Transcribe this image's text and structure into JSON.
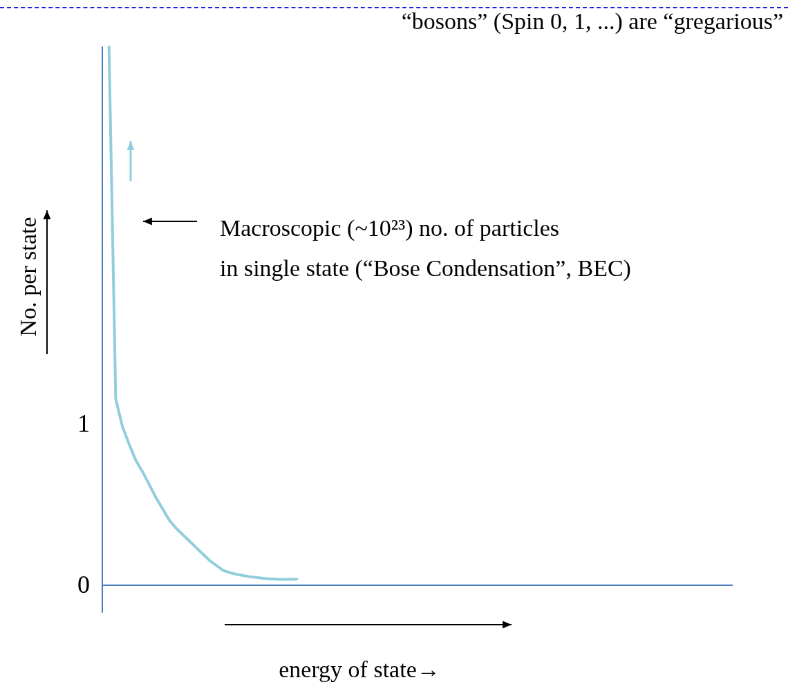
{
  "chart_data": {
    "type": "line",
    "title": "“bosons” (Spin 0, 1, ...) are “gregarious”",
    "xlabel": "energy of state→",
    "ylabel": "No. per state",
    "annotations": [
      "Macroscopic (~10²³) no. of particles\nin single state (“Bose Condensation”, BEC)"
    ],
    "categories": [
      null,
      null,
      null,
      null,
      null,
      null,
      null,
      null,
      null,
      null,
      null,
      null,
      null,
      null,
      null,
      null,
      null,
      null,
      null,
      null,
      null,
      null,
      null,
      null,
      null,
      null,
      null,
      null,
      null,
      null,
      null,
      null,
      null,
      null,
      null,
      null,
      null,
      null,
      null,
      null,
      null,
      null,
      null,
      null,
      null,
      null,
      null,
      null,
      null,
      null,
      null,
      null,
      null,
      null,
      null,
      null,
      null,
      null,
      null,
      null,
      null,
      null,
      null,
      null,
      null,
      null,
      null,
      null,
      null,
      null,
      null,
      null,
      null,
      null,
      null,
      null,
      null,
      null,
      null,
      null,
      null,
      null,
      null,
      null,
      null,
      null,
      null,
      null,
      null,
      null,
      null,
      null,
      null,
      null,
      null
    ],
    "series": [
      {
        "color": "#92cddc",
        "values": [
          null,
          3.33,
          1.15,
          0.98,
          0.87,
          0.77,
          0.7,
          0.62,
          0.54,
          0.47,
          0.4,
          0.35,
          0.31,
          0.27,
          0.23,
          0.19,
          0.15,
          0.12,
          0.09,
          0.075,
          0.065,
          0.057,
          0.05,
          0.045,
          0.04,
          0.037,
          0.035,
          0.034,
          0.034,
          0.035,
          null,
          null,
          null,
          null,
          null,
          null,
          null,
          null,
          null,
          null,
          null,
          null,
          null,
          null,
          null,
          null,
          null,
          null,
          null,
          null,
          null,
          null,
          null,
          null,
          null,
          null,
          null,
          null,
          null,
          null,
          null,
          null,
          null,
          null,
          null,
          null,
          null,
          null,
          null,
          null,
          null,
          null,
          null,
          null,
          null,
          null,
          null,
          null,
          null,
          null,
          null,
          null,
          null,
          null,
          null,
          null,
          null,
          null,
          null,
          null,
          null,
          null,
          null,
          null,
          null
        ]
      }
    ],
    "ylim": [
      -0.17,
      3.33
    ],
    "yticks": [
      0,
      1
    ],
    "tick_labels": "y",
    "grid": false,
    "marker": "none",
    "line_style": "solid",
    "ref_lines": [
      {
        "axis": "y",
        "value": 0,
        "color": "#4a7ebb",
        "line_style": "solid"
      }
    ]
  }
}
